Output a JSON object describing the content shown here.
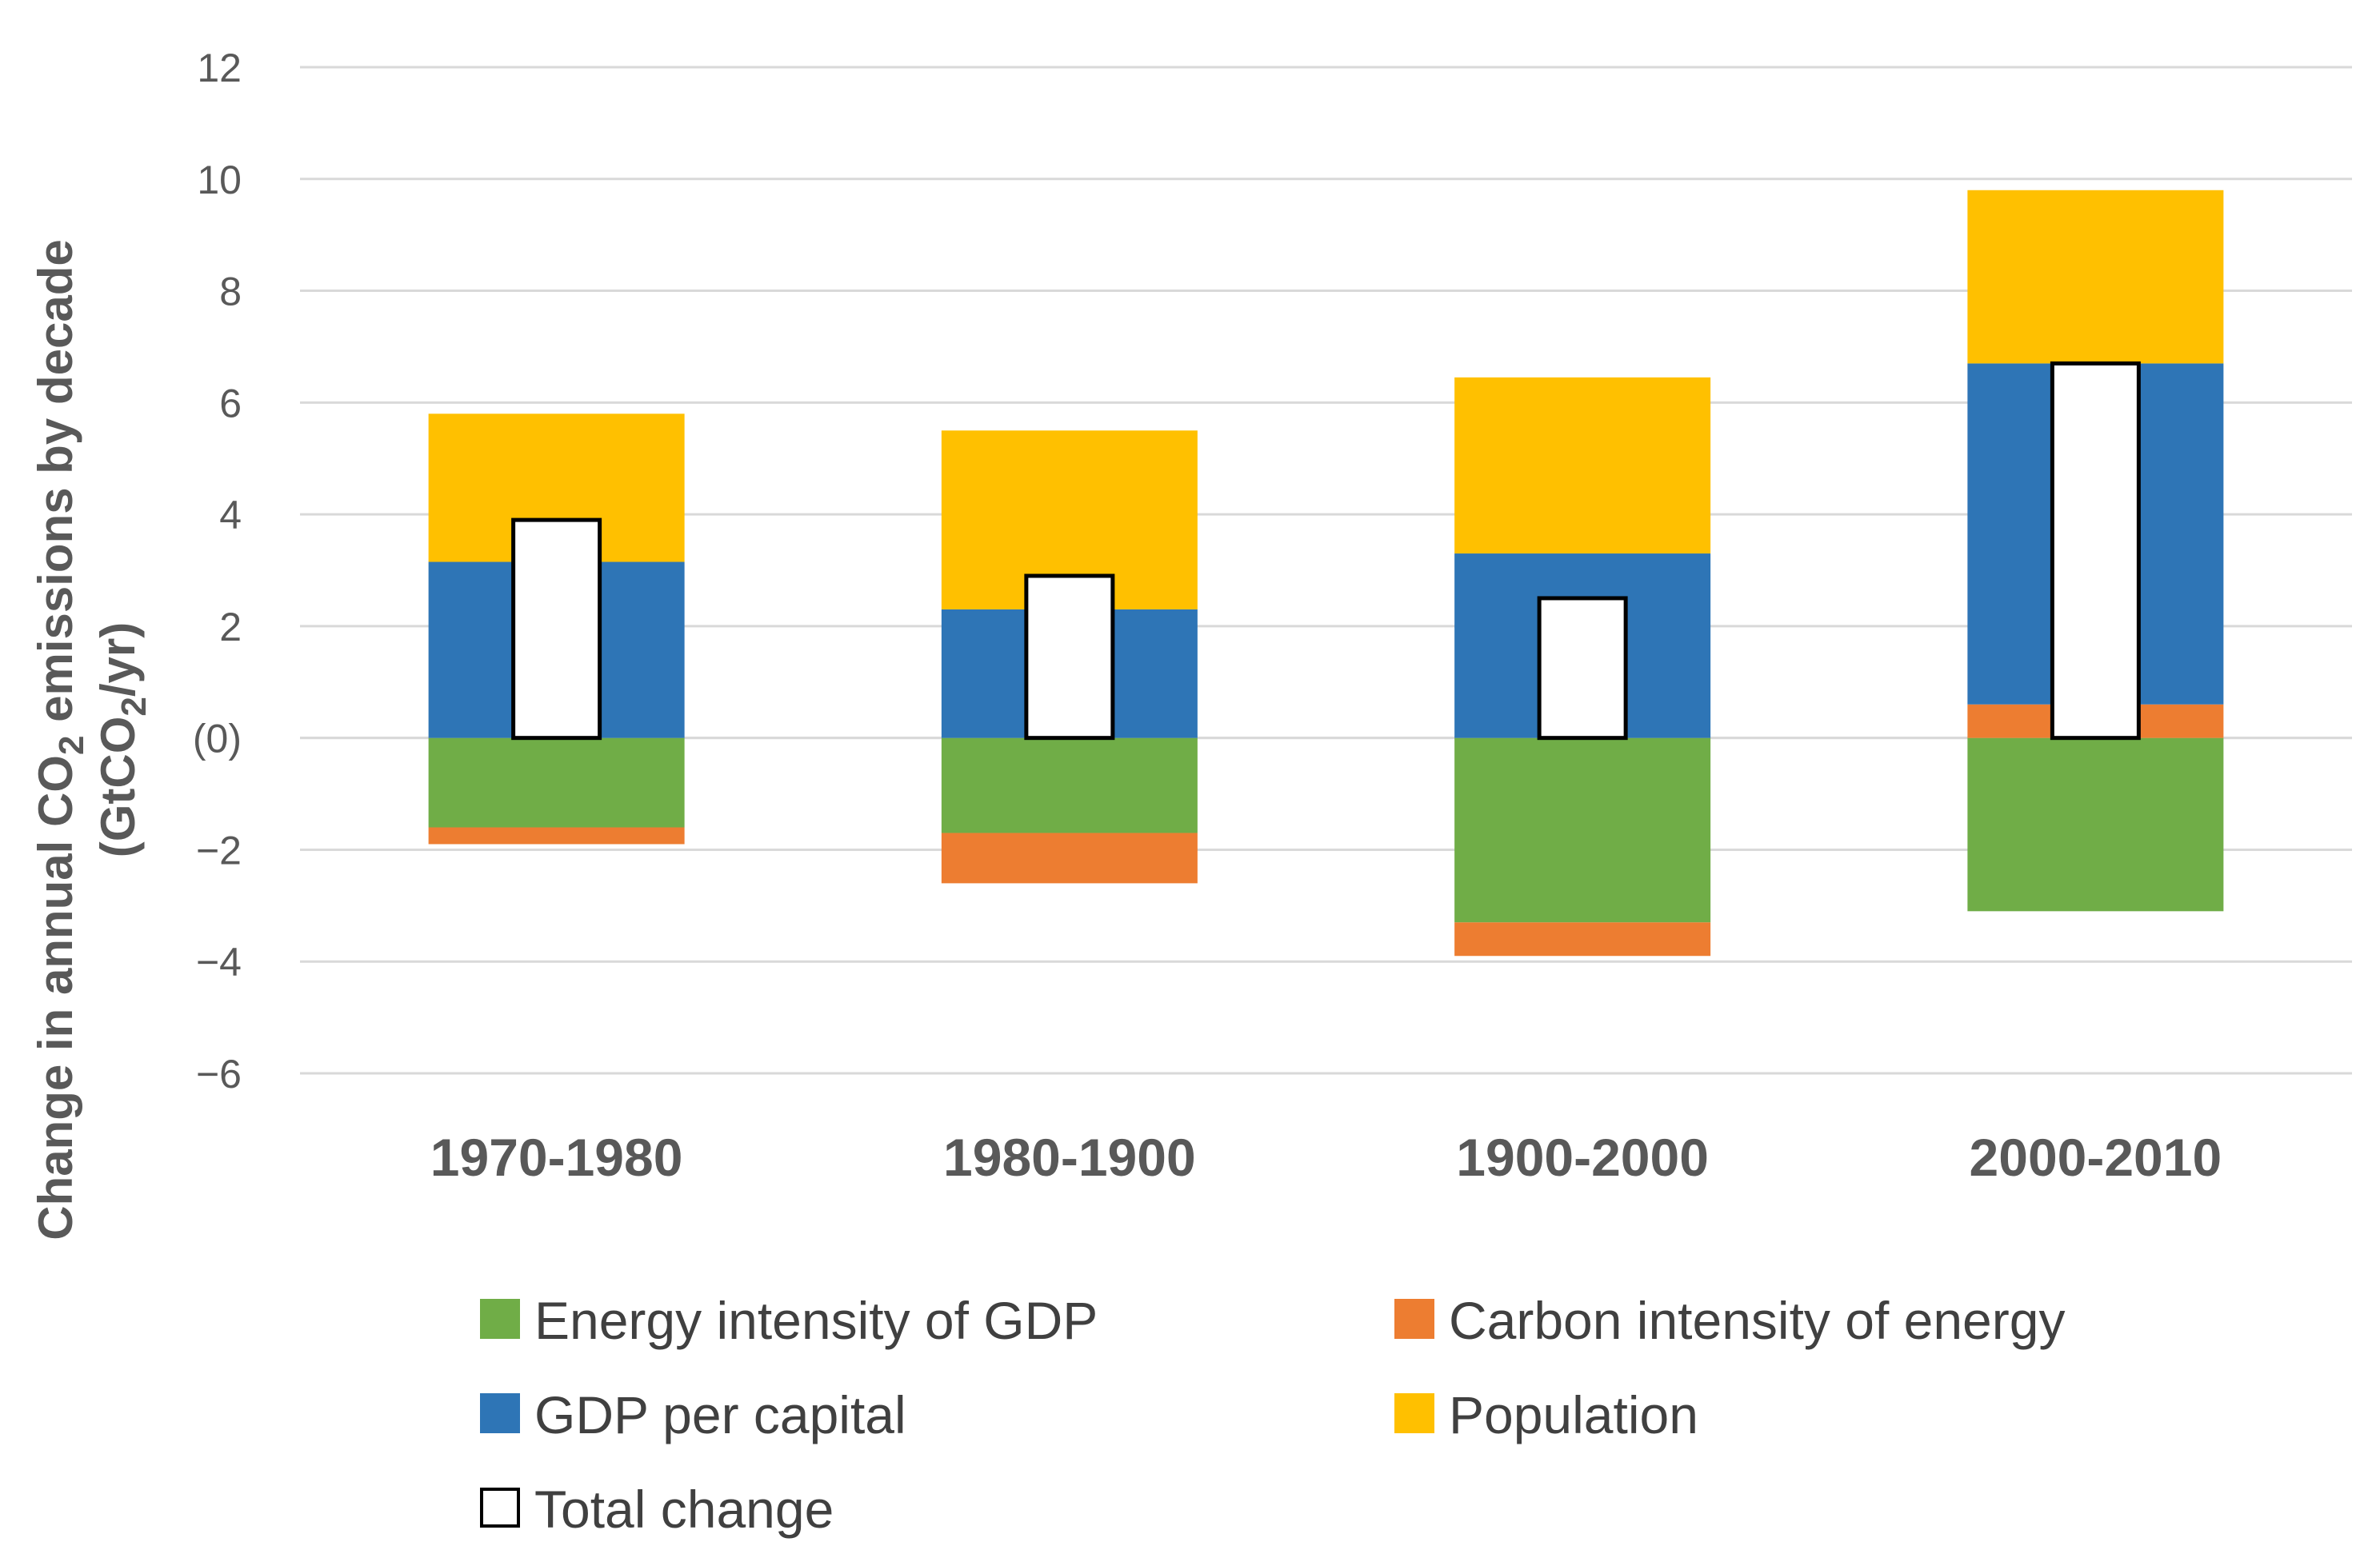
{
  "chart_data": {
    "type": "bar",
    "stacked": true,
    "title": "",
    "categories": [
      "1970-1980",
      "1980-1900",
      "1900-2000",
      "2000-2010"
    ],
    "series": [
      {
        "name": "Energy intensity of GDP",
        "color": "#70AD47",
        "values": [
          -1.6,
          -1.7,
          -3.3,
          -3.1
        ]
      },
      {
        "name": "Carbon intensity of energy",
        "color": "#ED7D31",
        "values": [
          -0.3,
          -0.9,
          -0.6,
          0.6
        ]
      },
      {
        "name": "GDP per capital",
        "color": "#2E75B6",
        "values": [
          3.15,
          2.3,
          3.3,
          6.1
        ]
      },
      {
        "name": "Population",
        "color": "#FFC000",
        "values": [
          2.65,
          3.2,
          3.15,
          3.1
        ]
      }
    ],
    "total_series": {
      "name": "Total change",
      "values": [
        3.9,
        2.9,
        2.5,
        6.7
      ]
    },
    "ylim": [
      -6,
      12
    ],
    "yticks": [
      12,
      10,
      8,
      6,
      4,
      2,
      0,
      -2,
      -4,
      -6
    ],
    "ytick_labels": [
      "12",
      "10",
      "8",
      "6",
      "4",
      "2",
      "(0)",
      "−2",
      "−4",
      "−6"
    ],
    "ylabel_line1_parts": [
      "Change in annual CO",
      "2",
      " emissions by decade"
    ],
    "ylabel_line2_parts": [
      "(GtCO",
      "2",
      "/yr)"
    ],
    "xlabel": "",
    "grid": true,
    "legend": "bottom"
  }
}
